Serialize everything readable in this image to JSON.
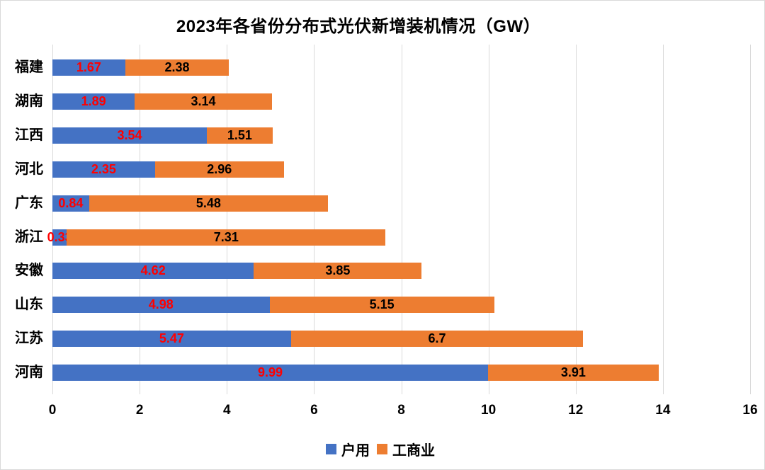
{
  "chart_data": {
    "type": "bar",
    "orientation": "horizontal",
    "stacked": true,
    "title": "2023年各省份分布式光伏新增装机情况（GW）",
    "categories": [
      "福建",
      "湖南",
      "江西",
      "河北",
      "广东",
      "浙江",
      "安徽",
      "山东",
      "江苏",
      "河南"
    ],
    "series": [
      {
        "name": "户用",
        "color": "#4472C4",
        "label_color": "#FF0000",
        "values": [
          1.67,
          1.89,
          3.54,
          2.35,
          0.84,
          0.33,
          4.62,
          4.98,
          5.47,
          9.99
        ]
      },
      {
        "name": "工商业",
        "color": "#ED7D31",
        "label_color": "#000000",
        "values": [
          2.38,
          3.14,
          1.51,
          2.96,
          5.48,
          7.31,
          3.85,
          5.15,
          6.7,
          3.91
        ]
      }
    ],
    "xlim": [
      0,
      16
    ],
    "x_ticks": [
      0,
      2,
      4,
      6,
      8,
      10,
      12,
      14,
      16
    ],
    "grid": true,
    "gridline_color": "#D9D9D9",
    "legend_position": "bottom",
    "ylabel": "",
    "xlabel": ""
  }
}
